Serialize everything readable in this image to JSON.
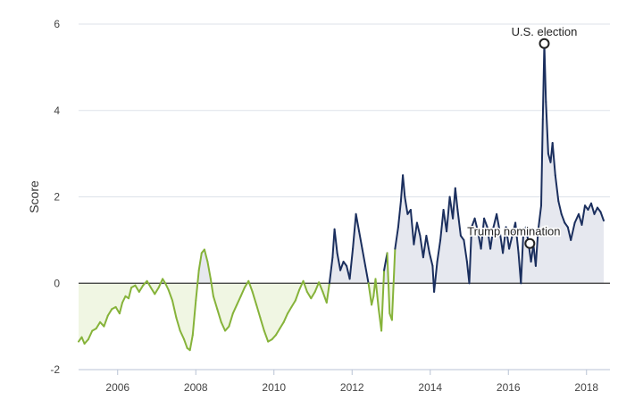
{
  "chart_data": {
    "type": "area",
    "title": "",
    "xlabel": "",
    "ylabel": "Score",
    "xlim": [
      2005.0,
      2018.6
    ],
    "ylim": [
      -2,
      6
    ],
    "x_ticks": [
      2006,
      2008,
      2010,
      2012,
      2014,
      2016,
      2018
    ],
    "y_ticks": [
      -2,
      0,
      2,
      4,
      6
    ],
    "grid": true,
    "legend": "none",
    "colors": {
      "positive_line": "#1b2f5e",
      "positive_fill": "#e6e8ef",
      "negative_line": "#86b33a",
      "negative_fill": "#f0f6e3",
      "zero_line": "#333333",
      "grid": "#dde2ea"
    },
    "series": [
      {
        "color_rule": "navy above zero after 2011.4, green below zero",
        "points": [
          [
            2005.0,
            -1.35
          ],
          [
            2005.08,
            -1.25
          ],
          [
            2005.15,
            -1.4
          ],
          [
            2005.25,
            -1.3
          ],
          [
            2005.35,
            -1.1
          ],
          [
            2005.45,
            -1.05
          ],
          [
            2005.55,
            -0.9
          ],
          [
            2005.65,
            -1.0
          ],
          [
            2005.75,
            -0.75
          ],
          [
            2005.85,
            -0.6
          ],
          [
            2005.95,
            -0.55
          ],
          [
            2006.05,
            -0.7
          ],
          [
            2006.12,
            -0.45
          ],
          [
            2006.2,
            -0.3
          ],
          [
            2006.28,
            -0.35
          ],
          [
            2006.35,
            -0.1
          ],
          [
            2006.45,
            -0.05
          ],
          [
            2006.55,
            -0.2
          ],
          [
            2006.65,
            -0.05
          ],
          [
            2006.75,
            0.05
          ],
          [
            2006.85,
            -0.1
          ],
          [
            2006.95,
            -0.25
          ],
          [
            2007.05,
            -0.1
          ],
          [
            2007.15,
            0.1
          ],
          [
            2007.22,
            0.0
          ],
          [
            2007.3,
            -0.15
          ],
          [
            2007.4,
            -0.4
          ],
          [
            2007.5,
            -0.8
          ],
          [
            2007.6,
            -1.1
          ],
          [
            2007.7,
            -1.3
          ],
          [
            2007.78,
            -1.5
          ],
          [
            2007.85,
            -1.55
          ],
          [
            2007.92,
            -1.2
          ],
          [
            2008.0,
            -0.4
          ],
          [
            2008.08,
            0.3
          ],
          [
            2008.15,
            0.7
          ],
          [
            2008.22,
            0.78
          ],
          [
            2008.3,
            0.5
          ],
          [
            2008.38,
            0.1
          ],
          [
            2008.45,
            -0.3
          ],
          [
            2008.55,
            -0.6
          ],
          [
            2008.65,
            -0.9
          ],
          [
            2008.75,
            -1.1
          ],
          [
            2008.85,
            -1.0
          ],
          [
            2008.95,
            -0.7
          ],
          [
            2009.05,
            -0.5
          ],
          [
            2009.15,
            -0.3
          ],
          [
            2009.25,
            -0.1
          ],
          [
            2009.35,
            0.05
          ],
          [
            2009.45,
            -0.2
          ],
          [
            2009.55,
            -0.5
          ],
          [
            2009.65,
            -0.8
          ],
          [
            2009.75,
            -1.1
          ],
          [
            2009.85,
            -1.35
          ],
          [
            2009.95,
            -1.3
          ],
          [
            2010.05,
            -1.2
          ],
          [
            2010.15,
            -1.05
          ],
          [
            2010.25,
            -0.9
          ],
          [
            2010.35,
            -0.7
          ],
          [
            2010.45,
            -0.55
          ],
          [
            2010.55,
            -0.4
          ],
          [
            2010.65,
            -0.15
          ],
          [
            2010.75,
            0.05
          ],
          [
            2010.85,
            -0.2
          ],
          [
            2010.95,
            -0.35
          ],
          [
            2011.05,
            -0.2
          ],
          [
            2011.15,
            0.02
          ],
          [
            2011.25,
            -0.2
          ],
          [
            2011.35,
            -0.45
          ],
          [
            2011.42,
            0.0
          ],
          [
            2011.5,
            0.6
          ],
          [
            2011.55,
            1.25
          ],
          [
            2011.62,
            0.7
          ],
          [
            2011.7,
            0.3
          ],
          [
            2011.78,
            0.5
          ],
          [
            2011.86,
            0.4
          ],
          [
            2011.94,
            0.1
          ],
          [
            2012.02,
            0.8
          ],
          [
            2012.1,
            1.6
          ],
          [
            2012.18,
            1.2
          ],
          [
            2012.26,
            0.8
          ],
          [
            2012.34,
            0.4
          ],
          [
            2012.42,
            0.0
          ],
          [
            2012.5,
            -0.5
          ],
          [
            2012.55,
            -0.3
          ],
          [
            2012.6,
            0.1
          ],
          [
            2012.68,
            -0.6
          ],
          [
            2012.75,
            -1.1
          ],
          [
            2012.82,
            0.3
          ],
          [
            2012.9,
            0.7
          ],
          [
            2012.96,
            -0.7
          ],
          [
            2013.02,
            -0.85
          ],
          [
            2013.1,
            0.8
          ],
          [
            2013.18,
            1.3
          ],
          [
            2013.25,
            1.9
          ],
          [
            2013.3,
            2.5
          ],
          [
            2013.35,
            2.0
          ],
          [
            2013.42,
            1.6
          ],
          [
            2013.5,
            1.7
          ],
          [
            2013.58,
            0.9
          ],
          [
            2013.66,
            1.4
          ],
          [
            2013.74,
            1.1
          ],
          [
            2013.82,
            0.6
          ],
          [
            2013.9,
            1.1
          ],
          [
            2013.98,
            0.7
          ],
          [
            2014.06,
            0.4
          ],
          [
            2014.1,
            -0.2
          ],
          [
            2014.18,
            0.5
          ],
          [
            2014.26,
            1.0
          ],
          [
            2014.34,
            1.7
          ],
          [
            2014.42,
            1.2
          ],
          [
            2014.5,
            2.0
          ],
          [
            2014.58,
            1.5
          ],
          [
            2014.64,
            2.2
          ],
          [
            2014.7,
            1.7
          ],
          [
            2014.78,
            1.1
          ],
          [
            2014.86,
            1.0
          ],
          [
            2014.94,
            0.5
          ],
          [
            2015.0,
            0.0
          ],
          [
            2015.06,
            1.3
          ],
          [
            2015.14,
            1.5
          ],
          [
            2015.22,
            1.2
          ],
          [
            2015.3,
            0.8
          ],
          [
            2015.38,
            1.5
          ],
          [
            2015.46,
            1.3
          ],
          [
            2015.54,
            0.8
          ],
          [
            2015.62,
            1.3
          ],
          [
            2015.7,
            1.6
          ],
          [
            2015.78,
            1.2
          ],
          [
            2015.86,
            0.7
          ],
          [
            2015.94,
            1.3
          ],
          [
            2016.02,
            0.8
          ],
          [
            2016.1,
            1.1
          ],
          [
            2016.18,
            1.4
          ],
          [
            2016.26,
            0.7
          ],
          [
            2016.32,
            0.0
          ],
          [
            2016.38,
            1.1
          ],
          [
            2016.45,
            1.3
          ],
          [
            2016.52,
            0.9
          ],
          [
            2016.58,
            0.5
          ],
          [
            2016.64,
            0.9
          ],
          [
            2016.7,
            0.4
          ],
          [
            2016.76,
            1.2
          ],
          [
            2016.84,
            1.8
          ],
          [
            2016.88,
            3.8
          ],
          [
            2016.92,
            5.55
          ],
          [
            2016.96,
            4.2
          ],
          [
            2017.02,
            3.0
          ],
          [
            2017.08,
            2.8
          ],
          [
            2017.13,
            3.25
          ],
          [
            2017.2,
            2.5
          ],
          [
            2017.28,
            1.9
          ],
          [
            2017.36,
            1.6
          ],
          [
            2017.44,
            1.4
          ],
          [
            2017.52,
            1.3
          ],
          [
            2017.6,
            1.0
          ],
          [
            2017.7,
            1.4
          ],
          [
            2017.8,
            1.6
          ],
          [
            2017.88,
            1.35
          ],
          [
            2017.96,
            1.8
          ],
          [
            2018.04,
            1.7
          ],
          [
            2018.12,
            1.85
          ],
          [
            2018.2,
            1.6
          ],
          [
            2018.28,
            1.75
          ],
          [
            2018.36,
            1.65
          ],
          [
            2018.44,
            1.45
          ]
        ]
      }
    ],
    "annotations": [
      {
        "label": "U.S. election",
        "x": 2016.92,
        "y": 5.55
      },
      {
        "label": "Trump nomination",
        "x": 2016.55,
        "y": 0.92
      }
    ]
  }
}
